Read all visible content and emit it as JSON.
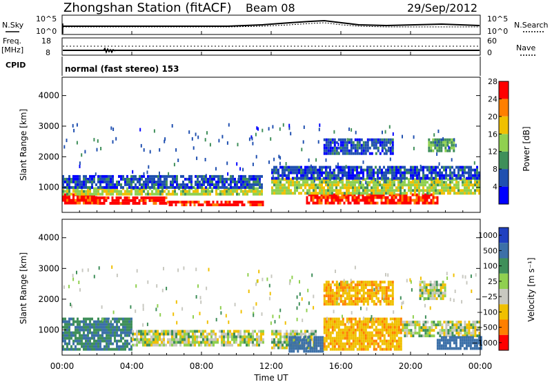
{
  "header": {
    "title": "Zhongshan Station (fitACF)",
    "beam": "Beam 08",
    "date": "29/Sep/2012"
  },
  "nsky_panel": {
    "left_label": "N.Sky",
    "left_ticks": [
      "10^5",
      "10^0"
    ],
    "right_ticks": [
      "10^5",
      "10^0"
    ],
    "right_label": "N.Search"
  },
  "freq_panel": {
    "left_label_1": "Freq.",
    "left_label_2": "[MHz]",
    "left_ticks": [
      "18",
      "8"
    ],
    "right_ticks": [
      "60",
      "0"
    ],
    "right_label": "Nave"
  },
  "cpid_panel": {
    "label": "CPID",
    "text": "normal (fast stereo) 153"
  },
  "chart_data": [
    {
      "type": "heatmap",
      "quantity": "Power",
      "ylabel": "Slant Range [km]",
      "ylim": [
        180,
        4600
      ],
      "yticks": [
        1000,
        2000,
        3000,
        4000
      ],
      "xlim_hours": [
        0,
        24
      ],
      "colorbar": {
        "label": "Power [dB]",
        "ticks": [
          "4",
          "8",
          "12",
          "16",
          "20",
          "24",
          "28"
        ],
        "colors": [
          "#0000ff",
          "#2050b0",
          "#3f8f5a",
          "#90d050",
          "#f0c000",
          "#ff7f00",
          "#ff0000"
        ]
      },
      "bands": [
        {
          "t0": 0.0,
          "t1": 2.0,
          "r0": 500,
          "r1": 800,
          "level": 28
        },
        {
          "t0": 2.0,
          "t1": 6.0,
          "r0": 450,
          "r1": 700,
          "level": 28
        },
        {
          "t0": 6.0,
          "t1": 11.5,
          "r0": 380,
          "r1": 560,
          "level": 28
        },
        {
          "t0": 0.0,
          "t1": 11.5,
          "r0": 800,
          "r1": 1000,
          "level": 16
        },
        {
          "t0": 0.0,
          "t1": 11.5,
          "r0": 1000,
          "r1": 1400,
          "level": 6
        },
        {
          "t0": 14.0,
          "t1": 21.5,
          "r0": 500,
          "r1": 800,
          "level": 28
        },
        {
          "t0": 12.0,
          "t1": 24.0,
          "r0": 800,
          "r1": 1300,
          "level": 16
        },
        {
          "t0": 12.0,
          "t1": 24.0,
          "r0": 1300,
          "r1": 1700,
          "level": 6
        },
        {
          "t0": 15.0,
          "t1": 19.0,
          "r0": 2100,
          "r1": 2600,
          "level": 6
        },
        {
          "t0": 21.0,
          "t1": 22.5,
          "r0": 2200,
          "r1": 2600,
          "level": 12
        }
      ]
    },
    {
      "type": "heatmap",
      "quantity": "Velocity",
      "ylabel": "Slant Range [km]",
      "ylim": [
        180,
        4600
      ],
      "yticks": [
        1000,
        2000,
        3000,
        4000
      ],
      "xlabel": "Time UT",
      "xticks": [
        "00:00",
        "04:00",
        "08:00",
        "12:00",
        "16:00",
        "20:00",
        "00:00"
      ],
      "xlim_hours": [
        0,
        24
      ],
      "colorbar": {
        "label": "Velocity [m s⁻¹]",
        "ticks": [
          "1000",
          "500",
          "100",
          "25",
          "−25",
          "−100",
          "−500",
          "−1000"
        ],
        "colors": [
          "#2040c0",
          "#3c70a8",
          "#3f8f5a",
          "#90d050",
          "#c8c8c0",
          "#f0c000",
          "#ff7f00",
          "#ff0000"
        ]
      },
      "bands": [
        {
          "t0": 0.0,
          "t1": 4.0,
          "r0": 400,
          "r1": 1400,
          "level": 100
        },
        {
          "t0": 4.0,
          "t1": 11.5,
          "r0": 500,
          "r1": 1000,
          "level": 0
        },
        {
          "t0": 12.0,
          "t1": 14.5,
          "r0": 400,
          "r1": 1000,
          "level": 0
        },
        {
          "t0": 13.0,
          "t1": 15.0,
          "r0": 350,
          "r1": 800,
          "level": 200
        },
        {
          "t0": 15.0,
          "t1": 19.5,
          "r0": 400,
          "r1": 1400,
          "level": -80
        },
        {
          "t0": 19.5,
          "t1": 24.0,
          "r0": 800,
          "r1": 1300,
          "level": 0
        },
        {
          "t0": 21.5,
          "t1": 24.0,
          "r0": 400,
          "r1": 800,
          "level": 300
        },
        {
          "t0": 15.0,
          "t1": 19.0,
          "r0": 1800,
          "r1": 2600,
          "level": -80
        },
        {
          "t0": 20.5,
          "t1": 22.0,
          "r0": 2000,
          "r1": 2600,
          "level": 0
        }
      ]
    }
  ]
}
